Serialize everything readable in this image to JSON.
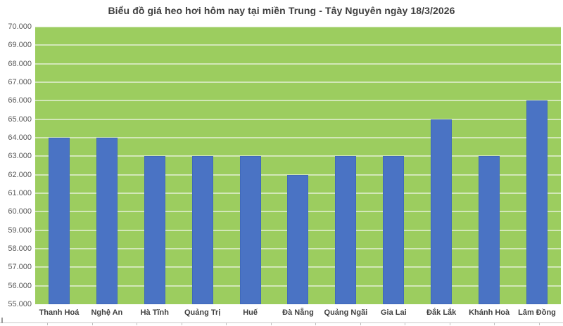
{
  "title": "Biểu đồ giá heo hơi hôm nay tại miền Trung - Tây Nguyên ngày 18/3/2026",
  "colors": {
    "plot_bg": "#9ccd5f",
    "gridline": "#d2e7b8",
    "bar": "#4a73c4",
    "bar_edge": "#4069ba",
    "title_text": "#3f3f3f",
    "y_axis_text": "#595959",
    "x_axis_text": "#3f3f3f",
    "table_line": "#c9c9c9"
  },
  "chart_data": {
    "type": "bar",
    "title": "Biểu đồ giá heo hơi hôm nay tại miền Trung - Tây Nguyên ngày 18/3/2026",
    "categories": [
      "Thanh Hoá",
      "Nghệ An",
      "Hà Tĩnh",
      "Quảng Trị",
      "Huế",
      "Đà Nẵng",
      "Quảng Ngãi",
      "Gia Lai",
      "Đắk Lắk",
      "Khánh Hoà",
      "Lâm Đồng"
    ],
    "values": [
      64000,
      64000,
      63000,
      63000,
      63000,
      62000,
      63000,
      63000,
      65000,
      63000,
      66000
    ],
    "xlabel": "",
    "ylabel": "",
    "ylim": [
      55000,
      70000
    ],
    "ytick_step": 1000,
    "ytick_labels": [
      "70.000",
      "69.000",
      "68.000",
      "67.000",
      "66.000",
      "65.000",
      "64.000",
      "63.000",
      "62.000",
      "61.000",
      "60.000",
      "59.000",
      "58.000",
      "57.000",
      "56.000",
      "55.000"
    ],
    "grid": true,
    "legend": false,
    "plot_background": "#9ccd5f",
    "bar_color": "#4a73c4"
  }
}
